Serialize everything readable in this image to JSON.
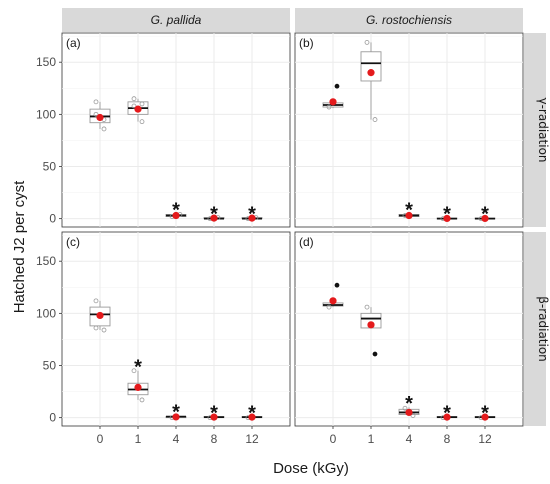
{
  "chart_data": {
    "type": "boxplot",
    "xlabel": "Dose (kGy)",
    "ylabel": "Hatched J2 per cyst",
    "categories": [
      "0",
      "1",
      "4",
      "8",
      "12"
    ],
    "ylim": [
      -8,
      178
    ],
    "yticks": [
      "0",
      "50",
      "100",
      "150"
    ],
    "grid": true,
    "columns": [
      "G. pallida",
      "G. rostochiensis"
    ],
    "rows": [
      "γ-radiation",
      "β-radiation"
    ],
    "significance_marker": "*",
    "colors": {
      "mean": "#e41a1c",
      "median": "#111111",
      "box": "#9a9a9a",
      "outlier": "#111111",
      "strip": "#d9d9d9",
      "grid": "#ebebeb"
    },
    "panels": [
      {
        "label": "(a)",
        "column": "G. pallida",
        "row": "γ-radiation",
        "groups": [
          {
            "dose": "0",
            "q1": 92,
            "median": 98,
            "q3": 105,
            "lower": 86,
            "upper": 112,
            "mean": 97,
            "points": [
              112,
              86,
              100,
              95
            ],
            "outliers": [],
            "significant": false
          },
          {
            "dose": "1",
            "q1": 100,
            "median": 106,
            "q3": 112,
            "lower": 93,
            "upper": 115,
            "mean": 105,
            "points": [
              115,
              93,
              108,
              110
            ],
            "outliers": [],
            "significant": false
          },
          {
            "dose": "4",
            "q1": 2,
            "median": 3,
            "q3": 4,
            "lower": 1,
            "upper": 5,
            "mean": 3,
            "points": [
              2,
              4
            ],
            "outliers": [],
            "significant": true
          },
          {
            "dose": "8",
            "q1": 0,
            "median": 0,
            "q3": 1,
            "lower": 0,
            "upper": 1,
            "mean": 0.5,
            "points": [
              0,
              1
            ],
            "outliers": [],
            "significant": true
          },
          {
            "dose": "12",
            "q1": 0,
            "median": 0,
            "q3": 1,
            "lower": 0,
            "upper": 1,
            "mean": 0.5,
            "points": [
              0,
              1
            ],
            "outliers": [],
            "significant": true
          }
        ]
      },
      {
        "label": "(b)",
        "column": "G. rostochiensis",
        "row": "γ-radiation",
        "groups": [
          {
            "dose": "0",
            "q1": 107,
            "median": 109,
            "q3": 111,
            "lower": 106,
            "upper": 112,
            "mean": 112,
            "points": [
              107,
              127
            ],
            "outliers": [
              127
            ],
            "significant": false
          },
          {
            "dose": "1",
            "q1": 132,
            "median": 149,
            "q3": 160,
            "lower": 95,
            "upper": 169,
            "mean": 140,
            "points": [
              169,
              95
            ],
            "outliers": [],
            "significant": false
          },
          {
            "dose": "4",
            "q1": 2,
            "median": 3,
            "q3": 4,
            "lower": 2,
            "upper": 5,
            "mean": 3,
            "points": [
              3
            ],
            "outliers": [],
            "significant": true
          },
          {
            "dose": "8",
            "q1": 0,
            "median": 0,
            "q3": 0.5,
            "lower": 0,
            "upper": 1,
            "mean": 0.2,
            "points": [
              0
            ],
            "outliers": [],
            "significant": true
          },
          {
            "dose": "12",
            "q1": 0,
            "median": 0,
            "q3": 0.5,
            "lower": 0,
            "upper": 1,
            "mean": 0.2,
            "points": [
              0
            ],
            "outliers": [],
            "significant": true
          }
        ]
      },
      {
        "label": "(c)",
        "column": "G. pallida",
        "row": "β-radiation",
        "groups": [
          {
            "dose": "0",
            "q1": 88,
            "median": 99,
            "q3": 106,
            "lower": 84,
            "upper": 112,
            "mean": 98,
            "points": [
              112,
              84,
              86
            ],
            "outliers": [],
            "significant": false
          },
          {
            "dose": "1",
            "q1": 22,
            "median": 27,
            "q3": 33,
            "lower": 17,
            "upper": 45,
            "mean": 29,
            "points": [
              45,
              17
            ],
            "outliers": [],
            "significant": true
          },
          {
            "dose": "4",
            "q1": 0,
            "median": 1,
            "q3": 1,
            "lower": 0,
            "upper": 2,
            "mean": 0.7,
            "points": [
              0
            ],
            "outliers": [],
            "significant": true
          },
          {
            "dose": "8",
            "q1": 0,
            "median": 0.5,
            "q3": 1,
            "lower": 0,
            "upper": 1,
            "mean": 0.5,
            "points": [
              0
            ],
            "outliers": [],
            "significant": true
          },
          {
            "dose": "12",
            "q1": 0,
            "median": 0.5,
            "q3": 1,
            "lower": 0,
            "upper": 1,
            "mean": 0.5,
            "points": [
              0
            ],
            "outliers": [],
            "significant": true
          }
        ]
      },
      {
        "label": "(d)",
        "column": "G. rostochiensis",
        "row": "β-radiation",
        "groups": [
          {
            "dose": "0",
            "q1": 107,
            "median": 108,
            "q3": 110,
            "lower": 106,
            "upper": 112,
            "mean": 112,
            "points": [
              106,
              127
            ],
            "outliers": [
              127
            ],
            "significant": false
          },
          {
            "dose": "1",
            "q1": 86,
            "median": 95,
            "q3": 100,
            "lower": 86,
            "upper": 106,
            "mean": 89,
            "points": [
              106,
              61
            ],
            "outliers": [
              61
            ],
            "significant": false
          },
          {
            "dose": "4",
            "q1": 3,
            "median": 5,
            "q3": 8,
            "lower": 2,
            "upper": 10,
            "mean": 5,
            "points": [
              9,
              2
            ],
            "outliers": [],
            "significant": true
          },
          {
            "dose": "8",
            "q1": 0,
            "median": 0.5,
            "q3": 1,
            "lower": 0,
            "upper": 1,
            "mean": 0.5,
            "points": [
              0
            ],
            "outliers": [],
            "significant": true
          },
          {
            "dose": "12",
            "q1": 0,
            "median": 0.5,
            "q3": 1,
            "lower": 0,
            "upper": 1,
            "mean": 0.5,
            "points": [
              0
            ],
            "outliers": [],
            "significant": true
          }
        ]
      }
    ]
  }
}
